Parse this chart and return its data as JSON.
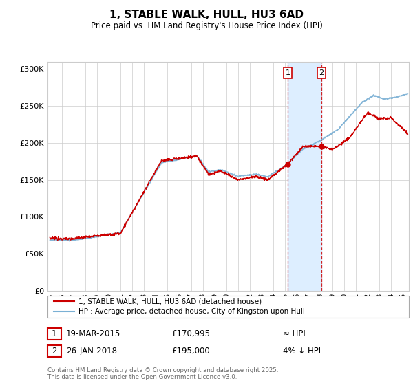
{
  "title": "1, STABLE WALK, HULL, HU3 6AD",
  "subtitle": "Price paid vs. HM Land Registry's House Price Index (HPI)",
  "ylim": [
    0,
    310000
  ],
  "xlim_start": 1994.8,
  "xlim_end": 2025.5,
  "sale1_date": 2015.21,
  "sale1_price": 170995,
  "sale2_date": 2018.07,
  "sale2_price": 195000,
  "legend_line1": "1, STABLE WALK, HULL, HU3 6AD (detached house)",
  "legend_line2": "HPI: Average price, detached house, City of Kingston upon Hull",
  "footer": "Contains HM Land Registry data © Crown copyright and database right 2025.\nThis data is licensed under the Open Government Licence v3.0.",
  "red_color": "#cc0000",
  "blue_color": "#7ab0d4",
  "shade_color": "#ddeeff",
  "grid_color": "#cccccc",
  "bg_color": "#ffffff"
}
